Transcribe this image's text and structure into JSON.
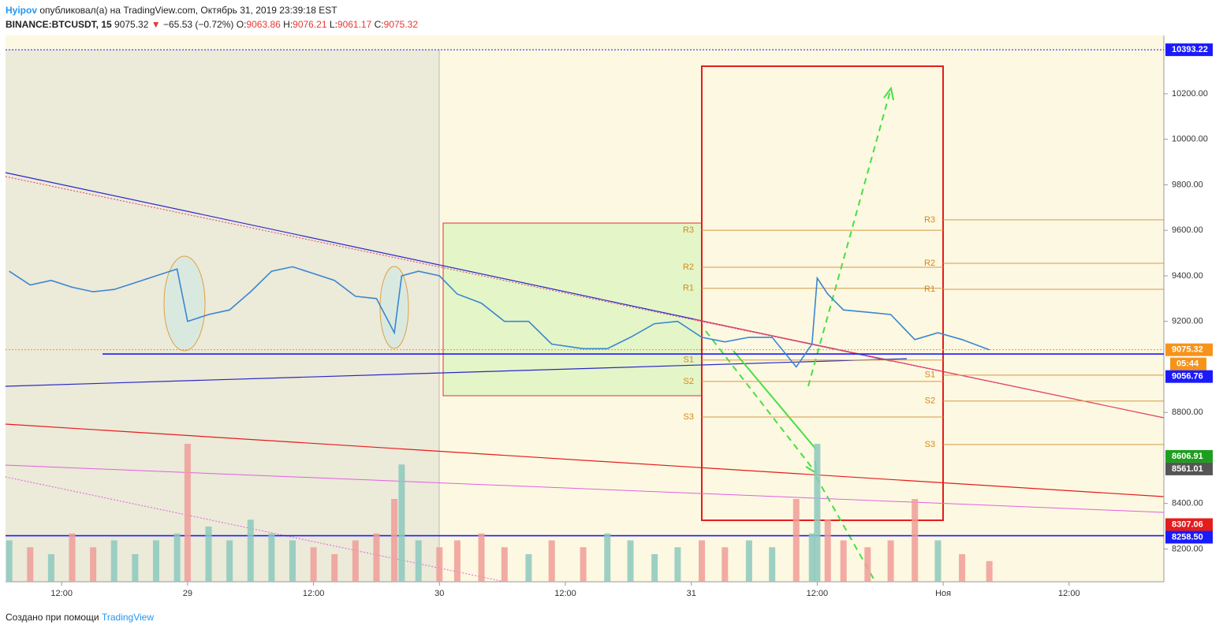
{
  "chart_data": {
    "type": "line",
    "header": {
      "author": "Hyipov",
      "published": "опубликовал(а) на TradingView.com, Октябрь 31, 2019 23:39:18 EST",
      "symbol": "BINANCE:BTCUSDT, 15",
      "last": "9075.32",
      "arrow": "▼",
      "change": "−65.53 (−0.72%)",
      "o_label": "O:",
      "o": "9063.86",
      "h_label": "H:",
      "h": "9076.21",
      "l_label": "L:",
      "l": "9061.17",
      "c_label": "C:",
      "c": "9075.32"
    },
    "footer": {
      "text": "Создано при помощи",
      "brand": "TradingView"
    },
    "x": [
      -17,
      -15,
      -13,
      -11,
      -9,
      -7,
      -5,
      -3,
      -1,
      0,
      2,
      4,
      6,
      8,
      10,
      12,
      14,
      16,
      18,
      19.7,
      20.4,
      22,
      24,
      25.7,
      28,
      30.2,
      32.5,
      34.7,
      37.7,
      40,
      42.2,
      44.5,
      46.7,
      49,
      51.2,
      53.5,
      55.7,
      58,
      59.5,
      60,
      61,
      62.5,
      64.8,
      67,
      69.3,
      71.5,
      73.8,
      76.4
    ],
    "series": [
      {
        "color": "#3a86d0",
        "values": [
          9420,
          9360,
          9380,
          9350,
          9330,
          9340,
          9370,
          9400,
          9430,
          9200,
          9230,
          9250,
          9330,
          9420,
          9440,
          9410,
          9380,
          9310,
          9300,
          9150,
          9400,
          9420,
          9400,
          9320,
          9280,
          9200,
          9200,
          9100,
          9080,
          9080,
          9130,
          9190,
          9200,
          9130,
          9110,
          9130,
          9130,
          9000,
          9100,
          9390,
          9320,
          9250,
          9240,
          9230,
          9120,
          9150,
          9120,
          9075.32
        ]
      }
    ],
    "volume": {
      "up_color": "#8cc9bd",
      "down_color": "#ee9e98",
      "values": [
        30,
        25,
        20,
        35,
        25,
        30,
        20,
        30,
        35,
        100,
        40,
        30,
        45,
        35,
        30,
        25,
        20,
        30,
        35,
        60,
        85,
        30,
        25,
        30,
        35,
        25,
        20,
        30,
        25,
        35,
        30,
        20,
        25,
        30,
        25,
        30,
        25,
        60,
        35,
        100,
        45,
        30,
        25,
        30,
        60,
        30,
        20,
        15
      ]
    },
    "xlim": [
      -17.35,
      93.03
    ],
    "xticks": [
      {
        "value": -12,
        "label": "12:00"
      },
      {
        "value": 0,
        "label": "29"
      },
      {
        "value": 12,
        "label": "12:00"
      },
      {
        "value": 24,
        "label": "30"
      },
      {
        "value": 36,
        "label": "12:00"
      },
      {
        "value": 48,
        "label": "31"
      },
      {
        "value": 60,
        "label": "12:00"
      },
      {
        "value": 72,
        "label": "Ноя"
      },
      {
        "value": 84,
        "label": "12:00"
      }
    ],
    "ylim": [
      8056,
      10456
    ],
    "yticks": [
      {
        "value": 8200,
        "label": "8200.00"
      },
      {
        "value": 8400,
        "label": "8400.00"
      },
      {
        "value": 8800,
        "label": "8800.00"
      },
      {
        "value": 9200,
        "label": "9200.00"
      },
      {
        "value": 9400,
        "label": "9400.00"
      },
      {
        "value": 9600,
        "label": "9600.00"
      },
      {
        "value": 9800,
        "label": "9800.00"
      },
      {
        "value": 10000,
        "label": "10000.00"
      },
      {
        "value": 10200,
        "label": "10200.00"
      }
    ],
    "price_labels": [
      {
        "value": 10393.22,
        "label": "10393.22",
        "color": "#1a1aff"
      },
      {
        "value": 9075.32,
        "label": "9075.32",
        "color": "#f7931a"
      },
      {
        "value": 9056.76,
        "label": "9056.76",
        "color": "#1a1aff"
      },
      {
        "value": 8606.91,
        "label": "8606.91",
        "color": "#1e9e1e"
      },
      {
        "value": 8561.01,
        "label": "8561.01",
        "color": "#555555"
      },
      {
        "value": 8307.06,
        "label": "8307.06",
        "color": "#e51c1c"
      },
      {
        "value": 8258.5,
        "label": "8258.50",
        "color": "#1a1aff"
      }
    ],
    "countdown": "05:44",
    "pivots": [
      {
        "x": [
          49,
          72
        ],
        "levels": [
          {
            "name": "R3",
            "value": 9600
          },
          {
            "name": "R2",
            "value": 9438
          },
          {
            "name": "R1",
            "value": 9345
          },
          {
            "name": "S1",
            "value": 9030
          },
          {
            "name": "S2",
            "value": 8936
          },
          {
            "name": "S3",
            "value": 8780
          }
        ]
      },
      {
        "x": [
          72,
          93.03
        ],
        "levels": [
          {
            "name": "R3",
            "value": 9646
          },
          {
            "name": "R2",
            "value": 9455
          },
          {
            "name": "R1",
            "value": 9341
          },
          {
            "name": "S1",
            "value": 8964
          },
          {
            "name": "S2",
            "value": 8850
          },
          {
            "name": "S3",
            "value": 8659
          }
        ]
      }
    ]
  }
}
